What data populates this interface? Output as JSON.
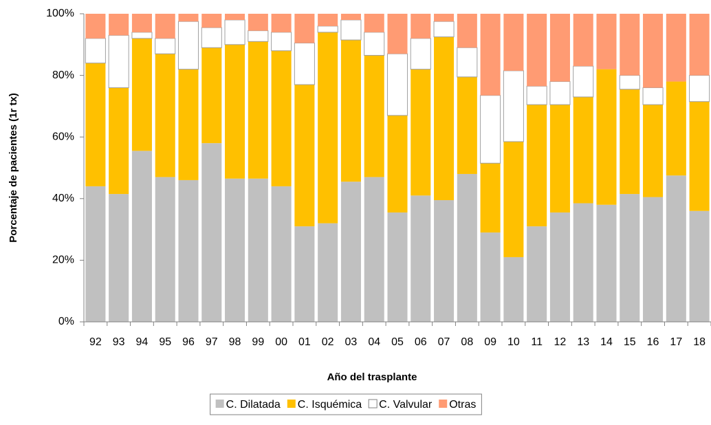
{
  "chart_data": {
    "type": "stacked_bar",
    "x_label": "Año del trasplante",
    "y_label": "Porcentaje de pacientes (1r tx)",
    "categories": [
      "92",
      "93",
      "94",
      "95",
      "96",
      "97",
      "98",
      "99",
      "00",
      "01",
      "02",
      "03",
      "04",
      "05",
      "06",
      "07",
      "08",
      "09",
      "10",
      "11",
      "12",
      "13",
      "14",
      "15",
      "16",
      "17",
      "18"
    ],
    "series": [
      {
        "name": "C. Dilatada",
        "color": "#c0c0c0",
        "values": [
          44,
          41.5,
          55.5,
          47,
          46,
          58,
          46.5,
          46.5,
          44,
          31,
          32,
          45.5,
          47,
          35.5,
          41,
          39.5,
          48,
          29,
          21,
          31,
          35.5,
          38.5,
          38,
          41.5,
          40.5,
          47.5,
          36
        ]
      },
      {
        "name": "C. Isquémica",
        "color": "#ffc000",
        "values": [
          40,
          34.5,
          36.5,
          40,
          36,
          31,
          43.5,
          44.5,
          44,
          46,
          62,
          46,
          39.5,
          31.5,
          41,
          53,
          31.5,
          22.5,
          37.5,
          39.5,
          35,
          34.5,
          44,
          34,
          30,
          30.5,
          35.5
        ]
      },
      {
        "name": "C. Valvular",
        "color": "#ffffff",
        "values": [
          8,
          17,
          2,
          5,
          15.5,
          6.5,
          8,
          3.5,
          6,
          13.5,
          2,
          6.5,
          7.5,
          20,
          10,
          5,
          9.5,
          22,
          23,
          6,
          7.5,
          10,
          0,
          4.5,
          5.5,
          0,
          8.5
        ]
      },
      {
        "name": "Otras",
        "color": "#ff9b73",
        "values": [
          8,
          7,
          6,
          8,
          2.5,
          4.5,
          2,
          5.5,
          6,
          9.5,
          4,
          2,
          6,
          13,
          8,
          2.5,
          11,
          26.5,
          18.5,
          23.5,
          22,
          17,
          18,
          20,
          24,
          22,
          20
        ]
      }
    ],
    "ylim": [
      0,
      100
    ],
    "yticks": [
      {
        "value": 0,
        "label": "0%"
      },
      {
        "value": 20,
        "label": "20%"
      },
      {
        "value": 40,
        "label": "40%"
      },
      {
        "value": 60,
        "label": "60%"
      },
      {
        "value": 80,
        "label": "80%"
      },
      {
        "value": 100,
        "label": "100%"
      }
    ],
    "legend": "bottom"
  }
}
